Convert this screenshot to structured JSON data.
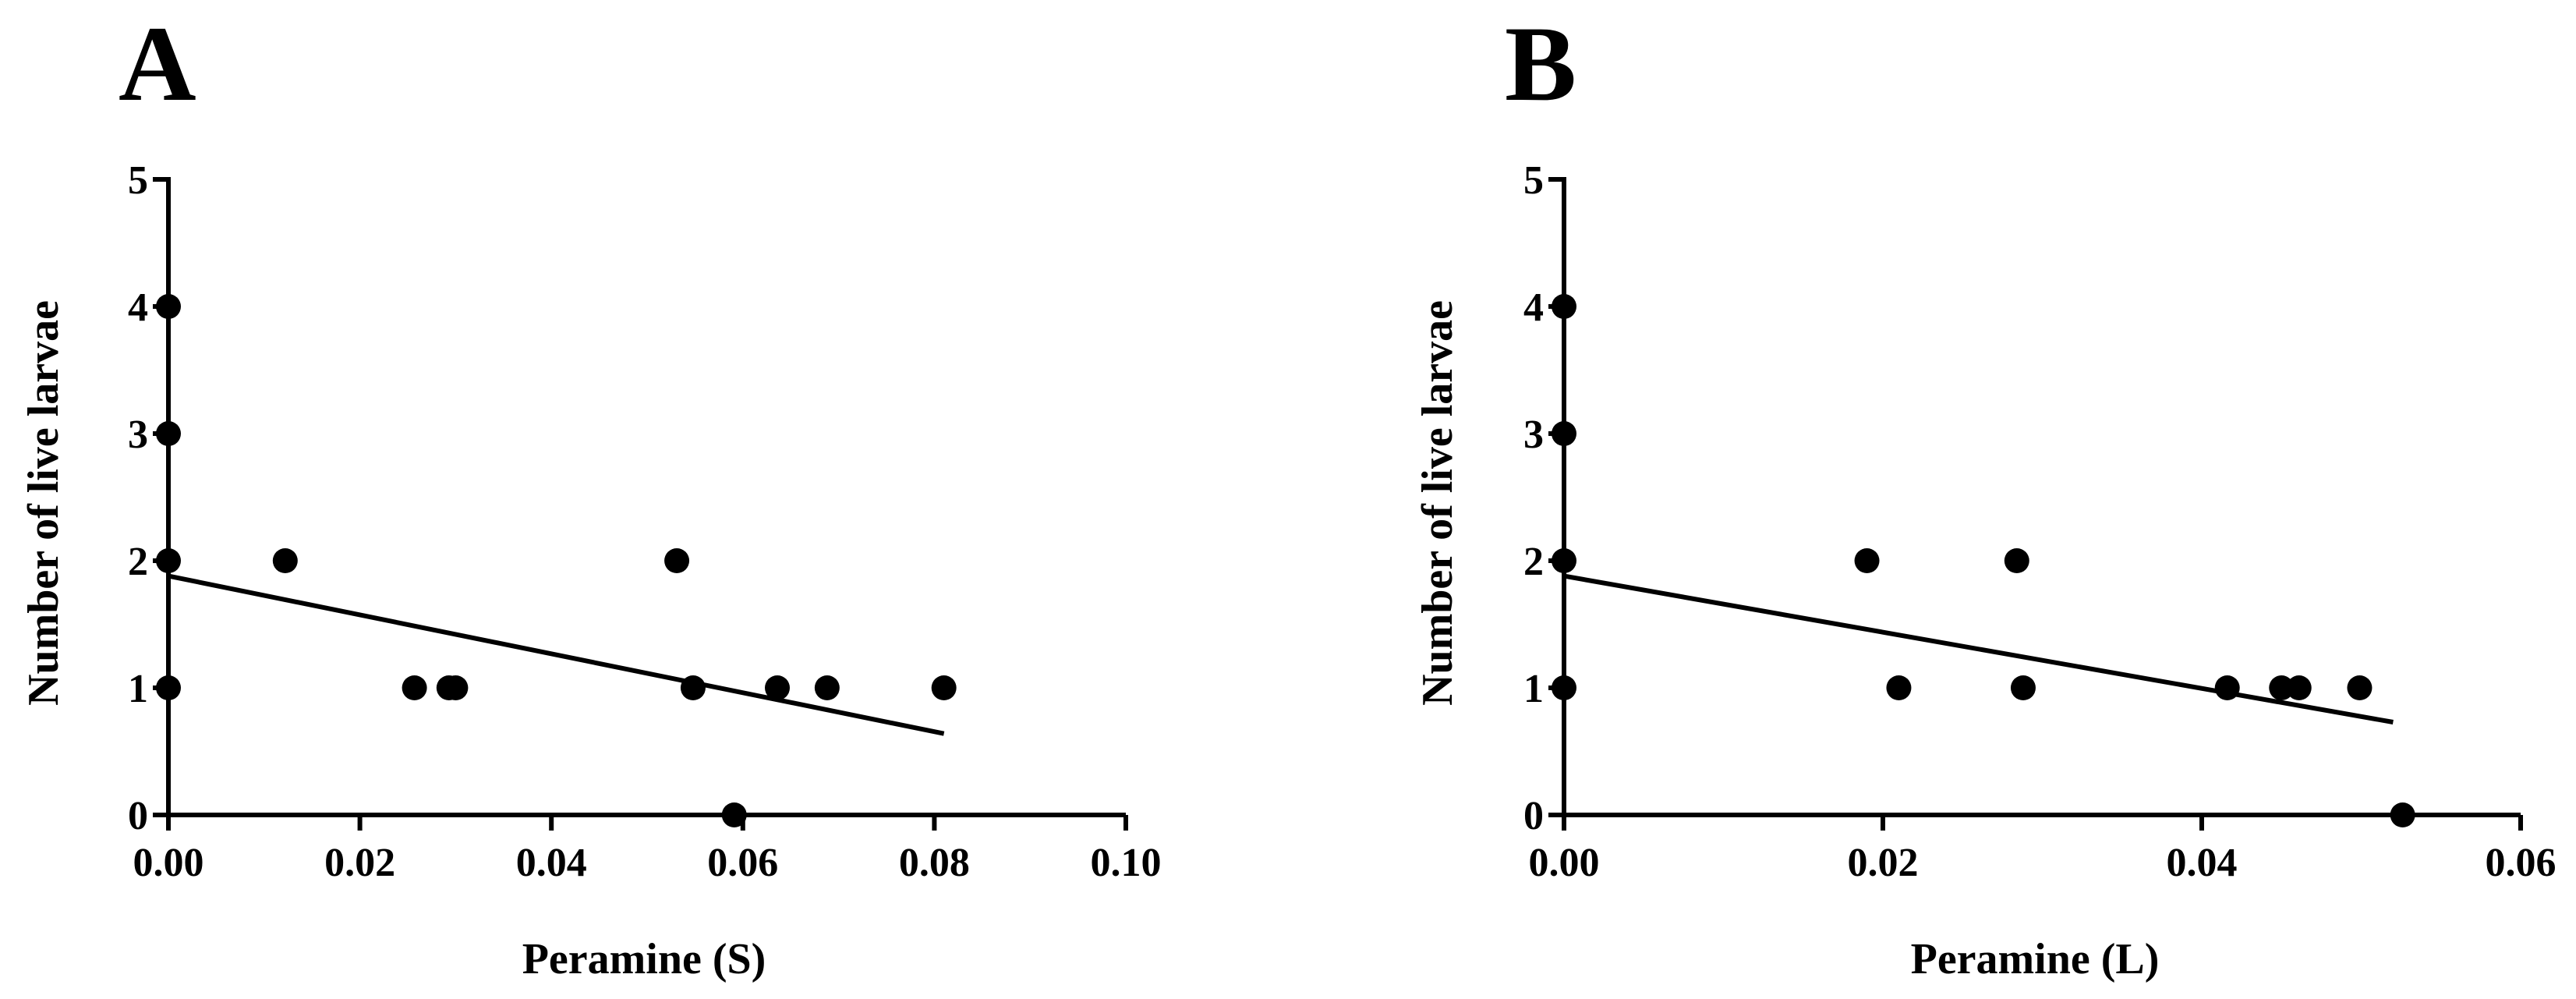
{
  "chart_data": [
    {
      "panel": "A",
      "type": "scatter",
      "xlabel": "Peramine (S)",
      "ylabel": "Number of live larvae",
      "xlim": [
        0,
        0.1
      ],
      "ylim": [
        0,
        5
      ],
      "xticks": [
        "0.00",
        "0.02",
        "0.04",
        "0.06",
        "0.08",
        "0.10"
      ],
      "yticks": [
        "0",
        "1",
        "2",
        "3",
        "4",
        "5"
      ],
      "points": [
        [
          0,
          4
        ],
        [
          0,
          3
        ],
        [
          0,
          2
        ],
        [
          0,
          1
        ],
        [
          0.0122,
          2
        ],
        [
          0.0257,
          1
        ],
        [
          0.0293,
          1
        ],
        [
          0.03,
          1
        ],
        [
          0.0531,
          2
        ],
        [
          0.0548,
          1
        ],
        [
          0.0591,
          0
        ],
        [
          0.0636,
          1
        ],
        [
          0.0688,
          1
        ],
        [
          0.081,
          1
        ]
      ],
      "fit_line": [
        [
          0,
          1.88
        ],
        [
          0.081,
          0.64
        ]
      ]
    },
    {
      "panel": "B",
      "type": "scatter",
      "xlabel": "Peramine (L)",
      "ylabel": "Number of live larvae",
      "xlim": [
        0,
        0.06
      ],
      "ylim": [
        0,
        5
      ],
      "xticks": [
        "0.00",
        "0.02",
        "0.04",
        "0.06"
      ],
      "yticks": [
        "0",
        "1",
        "2",
        "3",
        "4",
        "5"
      ],
      "points": [
        [
          0,
          4
        ],
        [
          0,
          3
        ],
        [
          0,
          2
        ],
        [
          0,
          1
        ],
        [
          0.019,
          2
        ],
        [
          0.021,
          1
        ],
        [
          0.0284,
          2
        ],
        [
          0.0288,
          1
        ],
        [
          0.0416,
          1
        ],
        [
          0.045,
          1
        ],
        [
          0.0461,
          1
        ],
        [
          0.0499,
          1
        ],
        [
          0.0526,
          0
        ]
      ],
      "fit_line": [
        [
          0,
          1.88
        ],
        [
          0.052,
          0.73
        ]
      ]
    }
  ]
}
